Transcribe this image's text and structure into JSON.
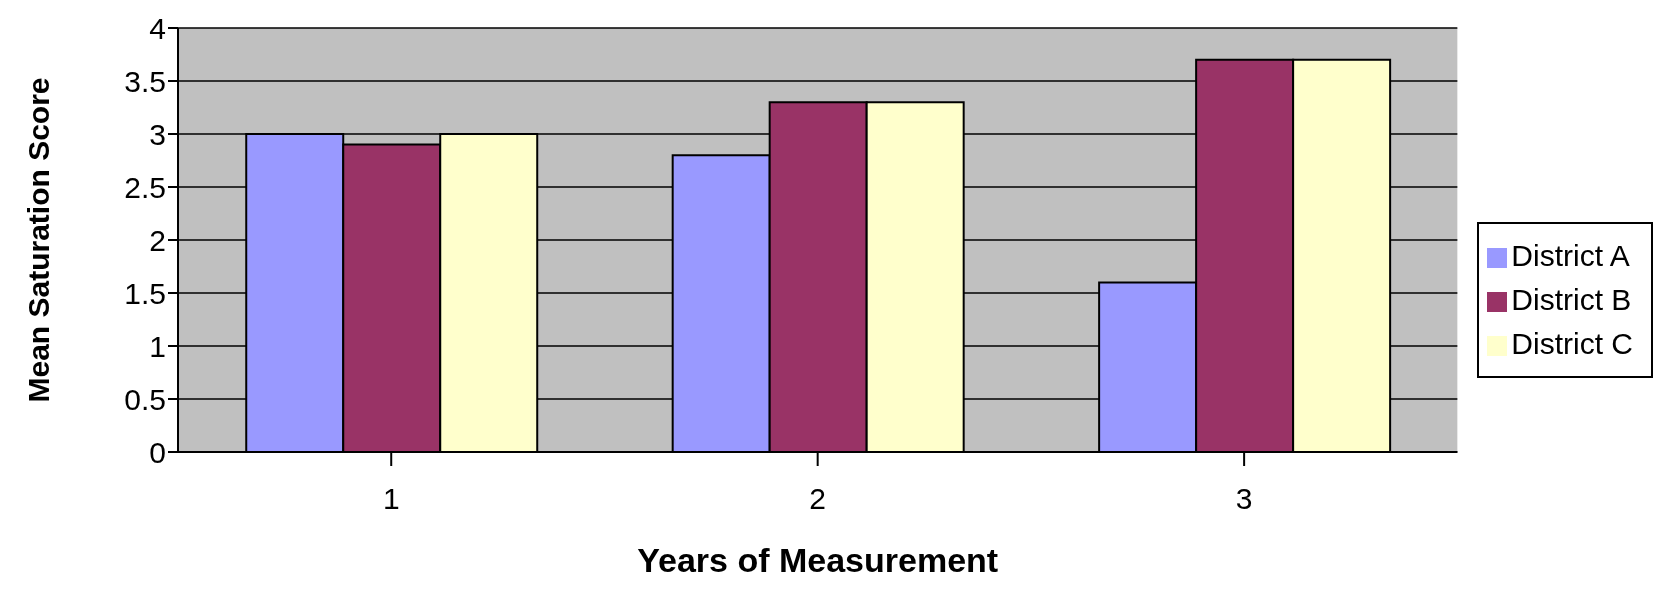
{
  "chart_data": {
    "type": "bar",
    "xlabel": "Years of Measurement",
    "ylabel": "Mean Saturation Score",
    "categories": [
      "1",
      "2",
      "3"
    ],
    "series": [
      {
        "name": "District A",
        "color": "#9999ff",
        "values": [
          3.0,
          2.8,
          1.6
        ]
      },
      {
        "name": "District B",
        "color": "#993366",
        "values": [
          2.9,
          3.3,
          3.7
        ]
      },
      {
        "name": "District C",
        "color": "#ffffcc",
        "values": [
          3.0,
          3.3,
          3.7
        ]
      }
    ],
    "ylim": [
      0,
      4
    ],
    "yticks": [
      0,
      0.5,
      1,
      1.5,
      2,
      2.5,
      3,
      3.5,
      4
    ],
    "grid": "y",
    "legend": "right"
  }
}
